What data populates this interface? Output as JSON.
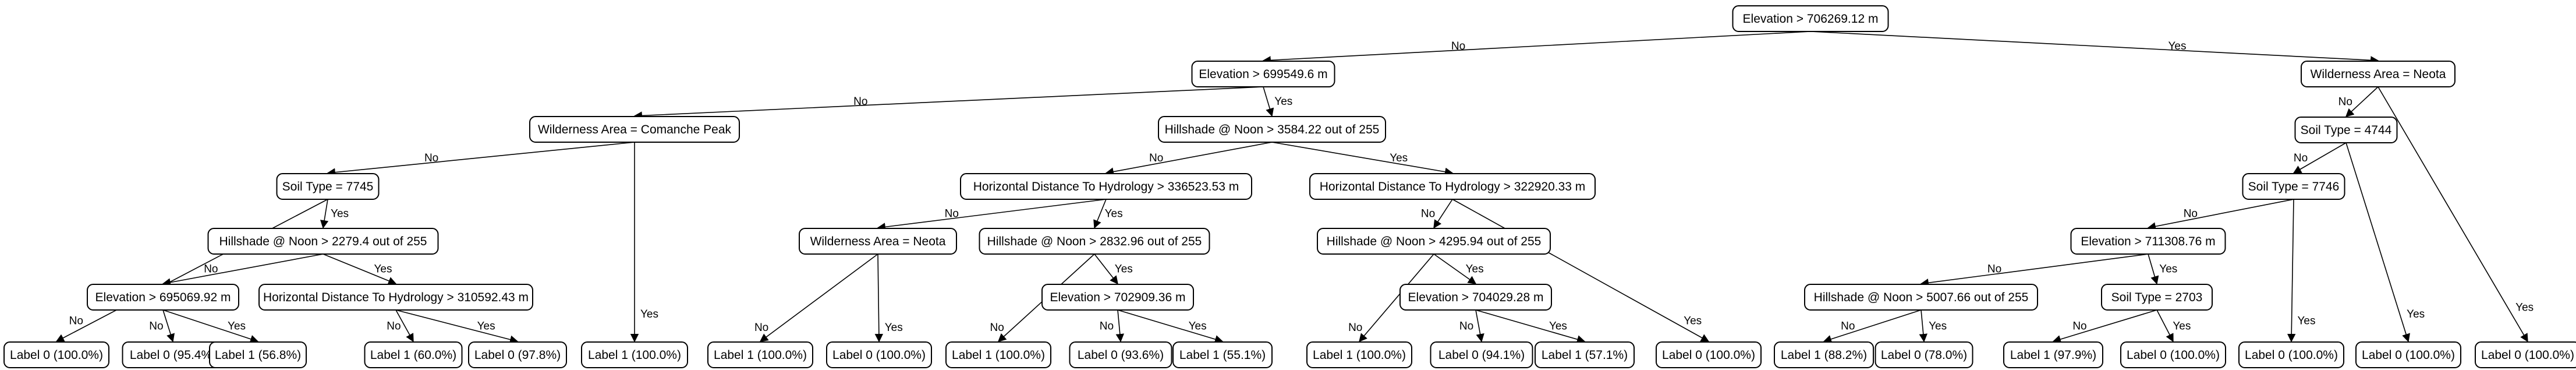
{
  "nodes": {
    "n0": {
      "text": "Elevation > 706269.12 m"
    },
    "n1": {
      "text": "Elevation > 699549.6 m"
    },
    "n2": {
      "text": "Wilderness Area = Neota"
    },
    "n3": {
      "text": "Wilderness Area = Comanche Peak"
    },
    "n4": {
      "text": "Hillshade @ Noon > 3584.22 out of 255"
    },
    "n5": {
      "text": "Soil Type = 7745"
    },
    "n6": {
      "text": "Label 1 (100.0%)"
    },
    "n7": {
      "text": "Label 0 (100.0%)"
    },
    "n8": {
      "text": "Hillshade @ Noon > 2279.4 out of 255"
    },
    "n9": {
      "text": "Elevation > 695069.92 m"
    },
    "n10": {
      "text": "Label 0 (95.4%)"
    },
    "n11": {
      "text": "Label 1 (56.8%)"
    },
    "n12": {
      "text": "Horizontal Distance To Hydrology > 310592.43 m"
    },
    "n13": {
      "text": "Label 1 (60.0%)"
    },
    "n14": {
      "text": "Label 0 (97.8%)"
    },
    "n15": {
      "text": "Horizontal Distance To Hydrology > 336523.53 m"
    },
    "n16": {
      "text": "Horizontal Distance To Hydrology > 322920.33 m"
    },
    "n17": {
      "text": "Wilderness Area = Neota"
    },
    "n18": {
      "text": "Hillshade @ Noon > 2832.96 out of 255"
    },
    "n19": {
      "text": "Label 1 (100.0%)"
    },
    "n20": {
      "text": "Label 0 (100.0%)"
    },
    "n21": {
      "text": "Label 1 (100.0%)"
    },
    "n22": {
      "text": "Elevation > 702909.36 m"
    },
    "n23": {
      "text": "Label 0 (93.6%)"
    },
    "n24": {
      "text": "Label 1 (55.1%)"
    },
    "n25": {
      "text": "Hillshade @ Noon > 4295.94 out of 255"
    },
    "n26": {
      "text": "Label 0 (100.0%)"
    },
    "n27": {
      "text": "Label 1 (100.0%)"
    },
    "n28": {
      "text": "Elevation > 704029.28 m"
    },
    "n29": {
      "text": "Label 0 (94.1%)"
    },
    "n30": {
      "text": "Label 1 (57.1%)"
    },
    "n31": {
      "text": "Soil Type = 4744"
    },
    "n32": {
      "text": "Label 0 (100.0%)"
    },
    "n33": {
      "text": "Soil Type = 7746"
    },
    "n34": {
      "text": "Label 0 (100.0%)"
    },
    "n35": {
      "text": "Elevation > 711308.76 m"
    },
    "n36": {
      "text": "Label 0 (100.0%)"
    },
    "n37": {
      "text": "Hillshade @ Noon > 5007.66 out of 255"
    },
    "n38": {
      "text": "Soil Type = 2703"
    },
    "n39": {
      "text": "Label 1 (88.2%)"
    },
    "n40": {
      "text": "Label 0 (78.0%)"
    },
    "n41": {
      "text": "Label 1 (97.9%)"
    },
    "n42": {
      "text": "Label 0 (100.0%)"
    }
  },
  "edges": [
    {
      "from": "n0",
      "to": "n1",
      "label": "No"
    },
    {
      "from": "n0",
      "to": "n2",
      "label": "Yes"
    },
    {
      "from": "n1",
      "to": "n3",
      "label": "No"
    },
    {
      "from": "n1",
      "to": "n4",
      "label": "Yes"
    },
    {
      "from": "n3",
      "to": "n5",
      "label": "No"
    },
    {
      "from": "n3",
      "to": "n6",
      "label": "Yes"
    },
    {
      "from": "n5",
      "to": "n7",
      "label": "No"
    },
    {
      "from": "n5",
      "to": "n8",
      "label": "Yes"
    },
    {
      "from": "n8",
      "to": "n9",
      "label": "No"
    },
    {
      "from": "n8",
      "to": "n12",
      "label": "Yes"
    },
    {
      "from": "n9",
      "to": "n10",
      "label": "No"
    },
    {
      "from": "n9",
      "to": "n11",
      "label": "Yes"
    },
    {
      "from": "n12",
      "to": "n13",
      "label": "No"
    },
    {
      "from": "n12",
      "to": "n14",
      "label": "Yes"
    },
    {
      "from": "n4",
      "to": "n15",
      "label": "No"
    },
    {
      "from": "n4",
      "to": "n16",
      "label": "Yes"
    },
    {
      "from": "n15",
      "to": "n17",
      "label": "No"
    },
    {
      "from": "n15",
      "to": "n18",
      "label": "Yes"
    },
    {
      "from": "n17",
      "to": "n19",
      "label": "No"
    },
    {
      "from": "n17",
      "to": "n20",
      "label": "Yes"
    },
    {
      "from": "n18",
      "to": "n21",
      "label": "No"
    },
    {
      "from": "n18",
      "to": "n22",
      "label": "Yes"
    },
    {
      "from": "n22",
      "to": "n23",
      "label": "No"
    },
    {
      "from": "n22",
      "to": "n24",
      "label": "Yes"
    },
    {
      "from": "n16",
      "to": "n25",
      "label": "No"
    },
    {
      "from": "n16",
      "to": "n26",
      "label": "Yes"
    },
    {
      "from": "n25",
      "to": "n27",
      "label": "No"
    },
    {
      "from": "n25",
      "to": "n28",
      "label": "Yes"
    },
    {
      "from": "n28",
      "to": "n29",
      "label": "No"
    },
    {
      "from": "n28",
      "to": "n30",
      "label": "Yes"
    },
    {
      "from": "n2",
      "to": "n31",
      "label": "No"
    },
    {
      "from": "n2",
      "to": "n32",
      "label": "Yes"
    },
    {
      "from": "n31",
      "to": "n33",
      "label": "No"
    },
    {
      "from": "n31",
      "to": "n34",
      "label": "Yes"
    },
    {
      "from": "n33",
      "to": "n35",
      "label": "No"
    },
    {
      "from": "n33",
      "to": "n36",
      "label": "Yes"
    },
    {
      "from": "n35",
      "to": "n37",
      "label": "No"
    },
    {
      "from": "n35",
      "to": "n38",
      "label": "Yes"
    },
    {
      "from": "n37",
      "to": "n39",
      "label": "No"
    },
    {
      "from": "n37",
      "to": "n40",
      "label": "Yes"
    },
    {
      "from": "n38",
      "to": "n41",
      "label": "No"
    },
    {
      "from": "n38",
      "to": "n42",
      "label": "Yes"
    }
  ]
}
